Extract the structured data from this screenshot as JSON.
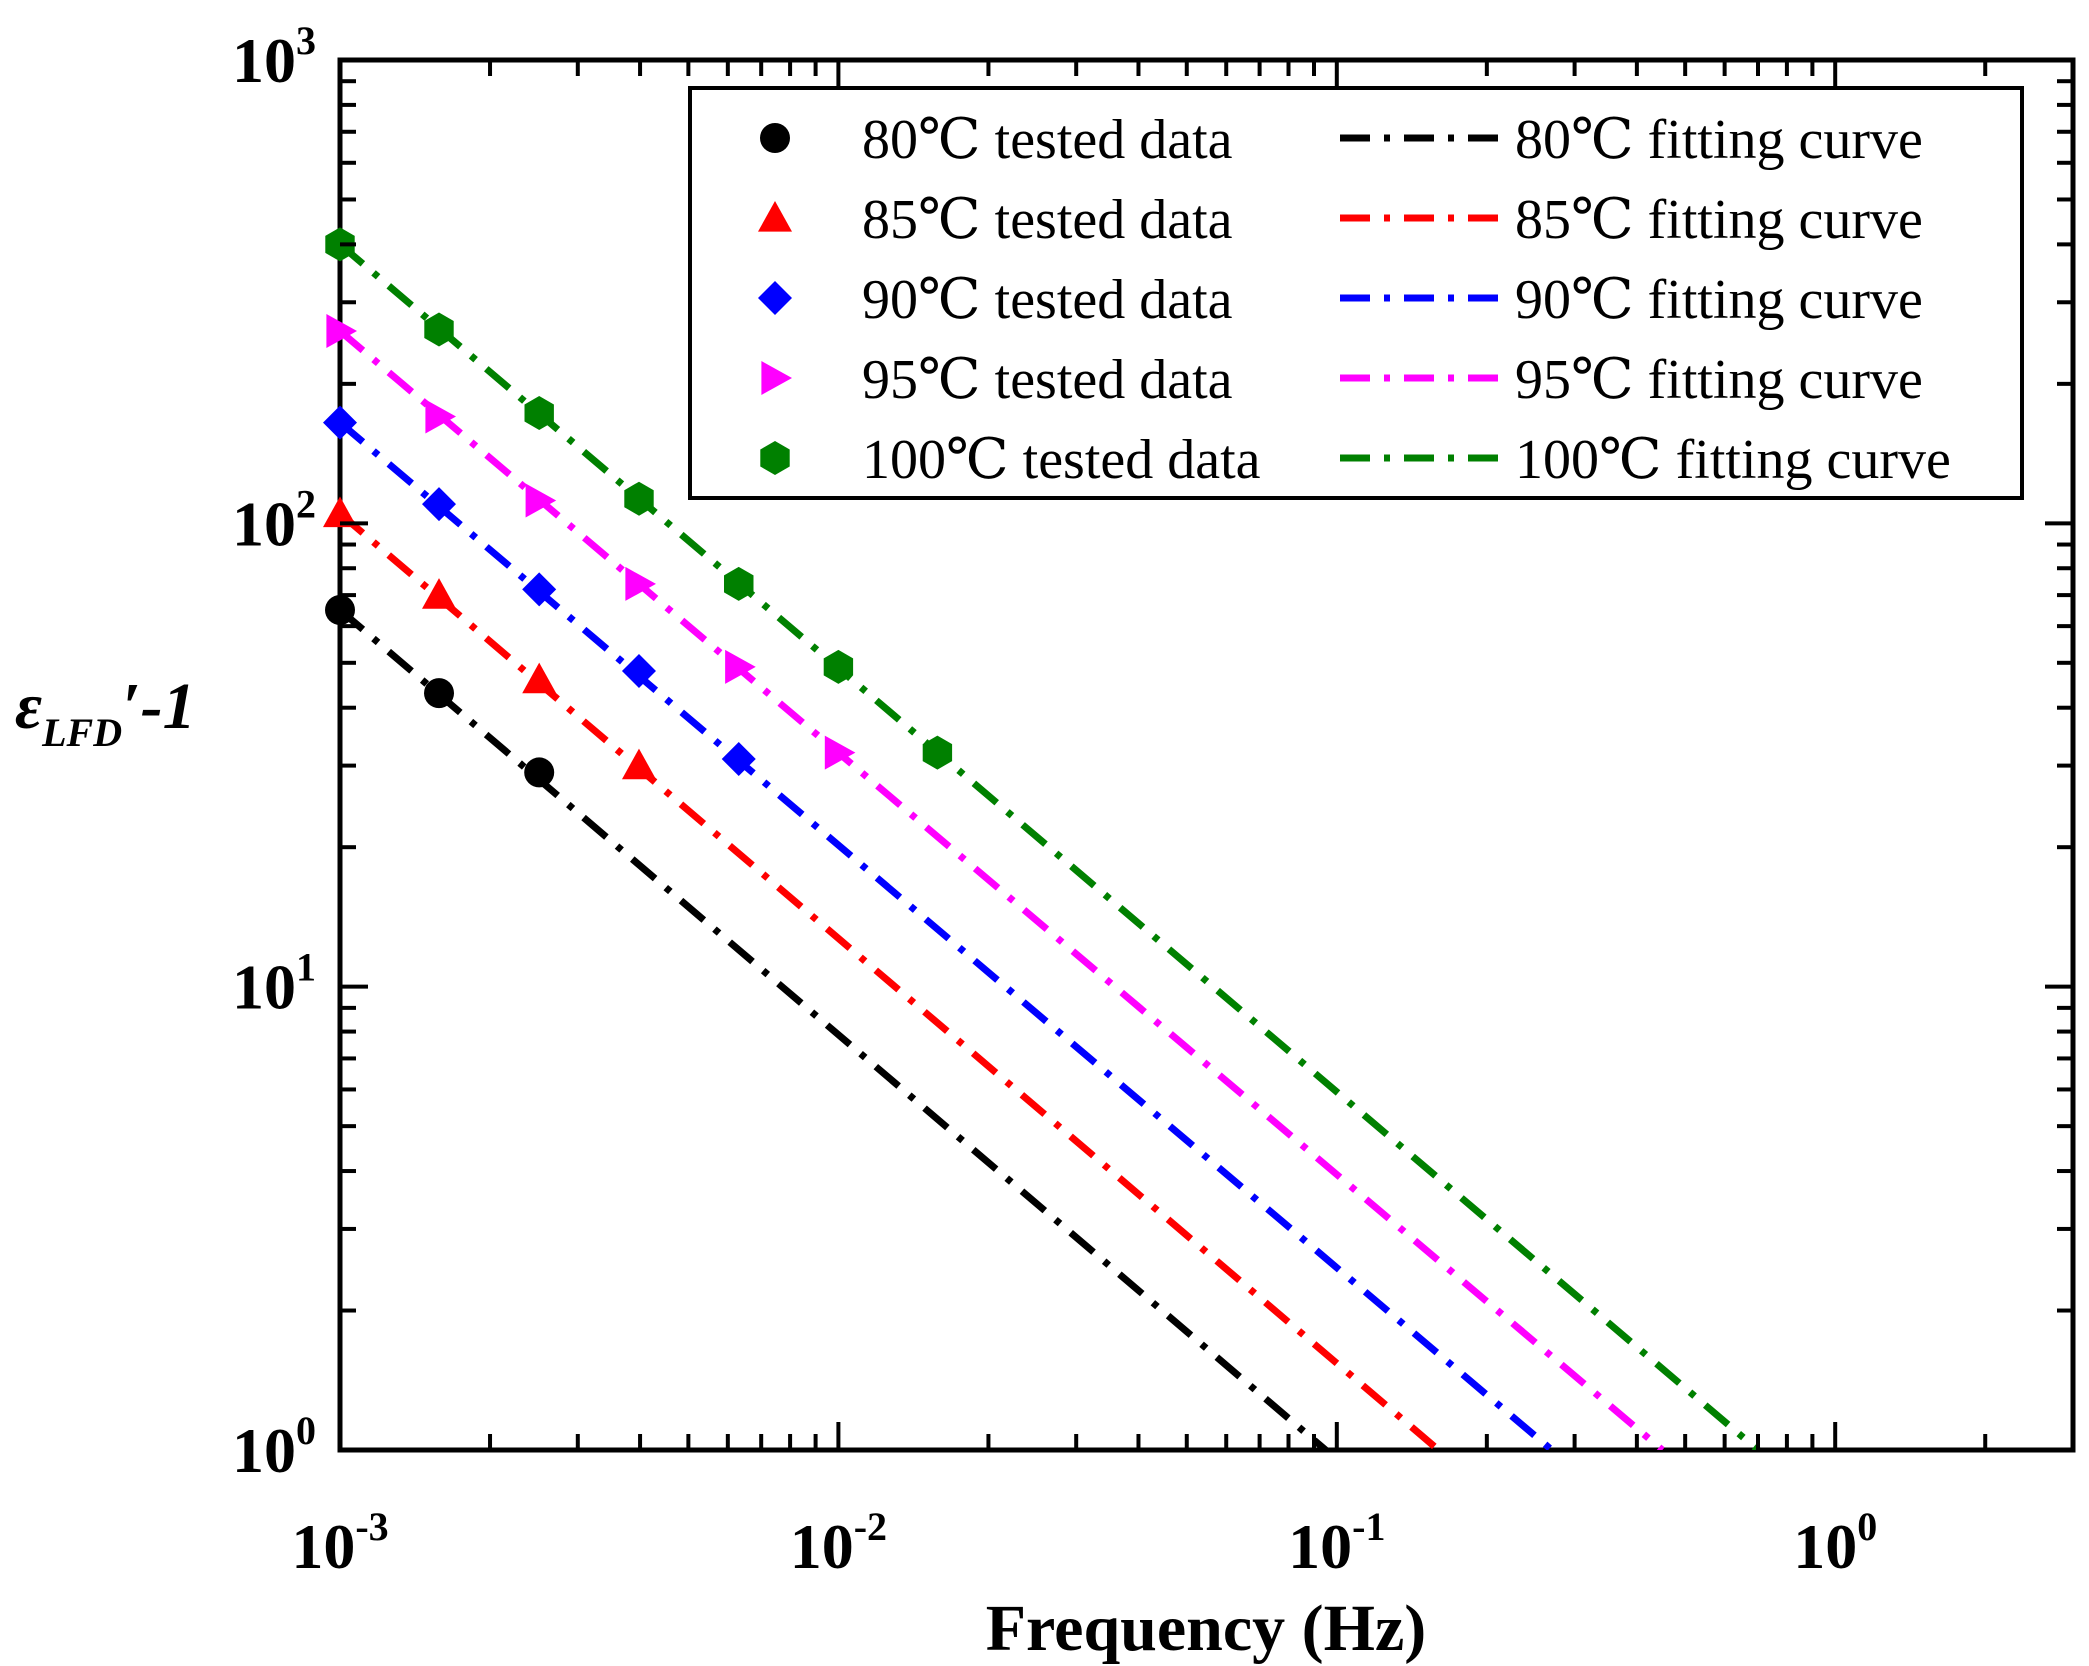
{
  "chart_data": {
    "type": "scatter",
    "title": "",
    "xlabel": "Frequency (Hz)",
    "ylabel": {
      "symbol": "ε",
      "subscript": "LFD",
      "suffix": "′-1"
    },
    "x_scale": "log",
    "y_scale": "log",
    "xlim": [
      0.001,
      3
    ],
    "ylim": [
      1,
      1000
    ],
    "x_ticks": [
      {
        "value": 0.001,
        "base": "10",
        "exp": "-3"
      },
      {
        "value": 0.01,
        "base": "10",
        "exp": "-2"
      },
      {
        "value": 0.1,
        "base": "10",
        "exp": "-1"
      },
      {
        "value": 1,
        "base": "10",
        "exp": "0"
      }
    ],
    "y_ticks": [
      {
        "value": 1,
        "base": "10",
        "exp": "0"
      },
      {
        "value": 10,
        "base": "10",
        "exp": "1"
      },
      {
        "value": 100,
        "base": "10",
        "exp": "2"
      },
      {
        "value": 1000,
        "base": "10",
        "exp": "3"
      }
    ],
    "grid": false,
    "legend_position": "top-right",
    "series": [
      {
        "name": "80℃ tested data",
        "fit_name": "80℃ fitting curve",
        "color": "#000000",
        "marker": "circle",
        "x": [
          0.001,
          0.00158,
          0.00251
        ],
        "y": [
          65,
          43,
          29
        ],
        "fit": {
          "x": [
            0.001,
            0.095
          ],
          "y": [
            65,
            1
          ]
        }
      },
      {
        "name": "85℃ tested data",
        "fit_name": "85℃ fitting curve",
        "color": "#ff0000",
        "marker": "triangle",
        "x": [
          0.001,
          0.00158,
          0.00251,
          0.00398
        ],
        "y": [
          105,
          70,
          46,
          30
        ],
        "fit": {
          "x": [
            0.001,
            0.16
          ],
          "y": [
            105,
            1
          ]
        }
      },
      {
        "name": "90℃ tested data",
        "fit_name": "90℃ fitting curve",
        "color": "#0000ff",
        "marker": "diamond",
        "x": [
          0.001,
          0.00158,
          0.00251,
          0.00398,
          0.00631
        ],
        "y": [
          165,
          110,
          72,
          48,
          31
        ],
        "fit": {
          "x": [
            0.001,
            0.27
          ],
          "y": [
            165,
            1
          ]
        }
      },
      {
        "name": "95℃ tested data",
        "fit_name": "95℃ fitting curve",
        "color": "#ff00ff",
        "marker": "triangle-right",
        "x": [
          0.001,
          0.00158,
          0.00251,
          0.00398,
          0.00631,
          0.01
        ],
        "y": [
          260,
          170,
          112,
          74,
          49,
          32
        ],
        "fit": {
          "x": [
            0.001,
            0.45
          ],
          "y": [
            260,
            1
          ]
        }
      },
      {
        "name": "100℃ tested data",
        "fit_name": "100℃ fitting curve",
        "color": "#008000",
        "marker": "hexagon",
        "x": [
          0.001,
          0.00158,
          0.00251,
          0.00398,
          0.00631,
          0.01,
          0.0158
        ],
        "y": [
          400,
          262,
          173,
          113,
          74,
          49,
          32
        ],
        "fit": {
          "x": [
            0.001,
            0.7
          ],
          "y": [
            400,
            1
          ]
        }
      }
    ]
  }
}
